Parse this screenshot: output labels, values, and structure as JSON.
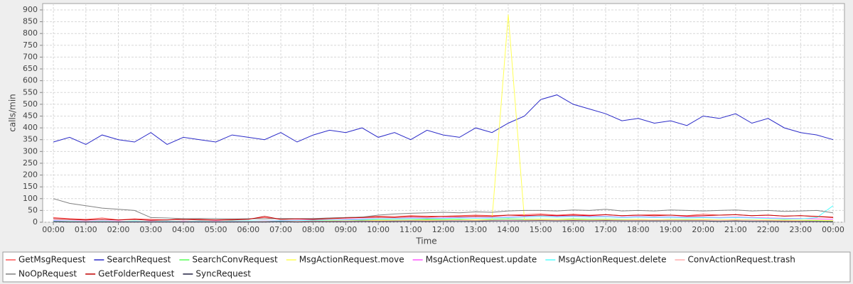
{
  "chart_data": {
    "type": "line",
    "x_label": "Time",
    "y_label": "calls/min",
    "x": [
      0,
      0.5,
      1,
      1.5,
      2,
      2.5,
      3,
      3.5,
      4,
      4.5,
      5,
      5.5,
      6,
      6.5,
      7,
      7.5,
      8,
      8.5,
      9,
      9.5,
      10,
      10.5,
      11,
      11.5,
      12,
      12.5,
      13,
      13.5,
      14,
      14.5,
      15,
      15.5,
      16,
      16.5,
      17,
      17.5,
      18,
      18.5,
      19,
      19.5,
      20,
      20.5,
      21,
      21.5,
      22,
      22.5,
      23,
      23.5,
      24
    ],
    "xlim": [
      -0.33,
      24.35
    ],
    "xticks": [
      {
        "value": 0,
        "label": "00:00"
      },
      {
        "value": 1,
        "label": "01:00"
      },
      {
        "value": 2,
        "label": "02:00"
      },
      {
        "value": 3,
        "label": "03:00"
      },
      {
        "value": 4,
        "label": "04:00"
      },
      {
        "value": 5,
        "label": "05:00"
      },
      {
        "value": 6,
        "label": "06:00"
      },
      {
        "value": 7,
        "label": "07:00"
      },
      {
        "value": 8,
        "label": "08:00"
      },
      {
        "value": 9,
        "label": "09:00"
      },
      {
        "value": 10,
        "label": "10:00"
      },
      {
        "value": 11,
        "label": "11:00"
      },
      {
        "value": 12,
        "label": "12:00"
      },
      {
        "value": 13,
        "label": "13:00"
      },
      {
        "value": 14,
        "label": "14:00"
      },
      {
        "value": 15,
        "label": "15:00"
      },
      {
        "value": 16,
        "label": "16:00"
      },
      {
        "value": 17,
        "label": "17:00"
      },
      {
        "value": 18,
        "label": "18:00"
      },
      {
        "value": 19,
        "label": "19:00"
      },
      {
        "value": 20,
        "label": "20:00"
      },
      {
        "value": 21,
        "label": "21:00"
      },
      {
        "value": 22,
        "label": "22:00"
      },
      {
        "value": 23,
        "label": "23:00"
      },
      {
        "value": 24,
        "label": "00:00"
      }
    ],
    "ylim": [
      0,
      927
    ],
    "yticks": [
      0,
      50,
      100,
      150,
      200,
      250,
      300,
      350,
      400,
      450,
      500,
      550,
      600,
      650,
      700,
      750,
      800,
      850,
      900
    ],
    "grid": true,
    "series": [
      {
        "name": "GetMsgRequest",
        "color": "#ff5555",
        "values": [
          20,
          15,
          12,
          18,
          10,
          14,
          12,
          10,
          15,
          12,
          10,
          12,
          14,
          20,
          12,
          15,
          14,
          18,
          20,
          22,
          25,
          24,
          28,
          26,
          25,
          28,
          30,
          28,
          30,
          32,
          35,
          30,
          34,
          30,
          32,
          28,
          30,
          32,
          30,
          28,
          34,
          30,
          32,
          28,
          30,
          26,
          28,
          25,
          22
        ]
      },
      {
        "name": "SearchRequest",
        "color": "#2a2ac8",
        "values": [
          340,
          360,
          330,
          370,
          350,
          340,
          380,
          330,
          360,
          350,
          340,
          370,
          360,
          350,
          380,
          340,
          370,
          390,
          380,
          400,
          360,
          380,
          350,
          390,
          370,
          360,
          400,
          380,
          420,
          450,
          520,
          540,
          500,
          480,
          460,
          430,
          440,
          420,
          430,
          410,
          450,
          440,
          460,
          420,
          440,
          400,
          380,
          370,
          350
        ]
      },
      {
        "name": "SearchConvRequest",
        "color": "#55ff55",
        "values": [
          5,
          4,
          5,
          3,
          4,
          5,
          3,
          4,
          5,
          4,
          3,
          5,
          4,
          5,
          6,
          5,
          6,
          7,
          6,
          8,
          10,
          9,
          10,
          12,
          11,
          12,
          10,
          12,
          14,
          12,
          13,
          12,
          14,
          12,
          13,
          11,
          12,
          10,
          12,
          11,
          12,
          10,
          11,
          10,
          9,
          10,
          8,
          7,
          6
        ]
      },
      {
        "name": "MsgActionRequest.move",
        "color": "#ffff55",
        "values": [
          5,
          4,
          3,
          4,
          3,
          4,
          3,
          4,
          3,
          4,
          3,
          4,
          5,
          4,
          5,
          6,
          5,
          6,
          7,
          6,
          8,
          7,
          8,
          9,
          8,
          9,
          10,
          9,
          880,
          10,
          12,
          11,
          12,
          10,
          11,
          10,
          12,
          10,
          11,
          10,
          12,
          10,
          11,
          9,
          10,
          8,
          9,
          8,
          7
        ]
      },
      {
        "name": "MsgActionRequest.update",
        "color": "#ff55ff",
        "values": [
          8,
          6,
          5,
          6,
          5,
          4,
          5,
          4,
          5,
          4,
          5,
          4,
          5,
          6,
          7,
          8,
          9,
          10,
          12,
          14,
          15,
          16,
          18,
          17,
          18,
          20,
          19,
          20,
          22,
          24,
          25,
          24,
          26,
          24,
          25,
          22,
          24,
          22,
          23,
          21,
          22,
          20,
          22,
          20,
          18,
          17,
          16,
          14,
          12
        ]
      },
      {
        "name": "MsgActionRequest.delete",
        "color": "#55ffff",
        "values": [
          6,
          5,
          4,
          5,
          4,
          5,
          4,
          5,
          4,
          5,
          4,
          5,
          6,
          5,
          6,
          7,
          8,
          9,
          10,
          12,
          14,
          15,
          16,
          15,
          16,
          18,
          17,
          18,
          20,
          22,
          24,
          22,
          24,
          22,
          23,
          20,
          22,
          20,
          21,
          19,
          20,
          18,
          20,
          18,
          16,
          15,
          14,
          20,
          70
        ]
      },
      {
        "name": "ConvActionRequest.trash",
        "color": "#ffafaf",
        "values": [
          3,
          2,
          3,
          2,
          3,
          2,
          3,
          2,
          3,
          2,
          3,
          2,
          3,
          4,
          3,
          4,
          5,
          4,
          5,
          6,
          5,
          6,
          7,
          6,
          7,
          8,
          7,
          8,
          9,
          8,
          9,
          8,
          9,
          8,
          9,
          8,
          9,
          8,
          9,
          8,
          9,
          8,
          9,
          8,
          7,
          6,
          5,
          4,
          3
        ]
      },
      {
        "name": "NoOpRequest",
        "color": "#808080",
        "values": [
          100,
          80,
          70,
          60,
          55,
          50,
          20,
          18,
          15,
          16,
          15,
          14,
          15,
          14,
          16,
          15,
          16,
          18,
          20,
          22,
          30,
          35,
          38,
          40,
          42,
          40,
          44,
          42,
          48,
          50,
          50,
          48,
          52,
          50,
          55,
          48,
          50,
          48,
          52,
          50,
          48,
          50,
          52,
          48,
          50,
          46,
          48,
          50,
          40
        ]
      },
      {
        "name": "GetFolderRequest",
        "color": "#c00000",
        "values": [
          15,
          12,
          10,
          12,
          10,
          12,
          8,
          10,
          12,
          10,
          9,
          10,
          12,
          25,
          12,
          14,
          12,
          15,
          18,
          20,
          22,
          20,
          24,
          22,
          25,
          24,
          26,
          25,
          30,
          28,
          30,
          28,
          30,
          28,
          32,
          28,
          30,
          28,
          30,
          26,
          28,
          30,
          32,
          28,
          30,
          26,
          28,
          24,
          20
        ]
      },
      {
        "name": "SyncRequest",
        "color": "#202040",
        "values": [
          2,
          1,
          1,
          1,
          1,
          1,
          1,
          1,
          1,
          1,
          1,
          1,
          1,
          1,
          2,
          1,
          2,
          2,
          2,
          3,
          3,
          3,
          4,
          3,
          4,
          4,
          4,
          5,
          5,
          5,
          6,
          5,
          6,
          5,
          6,
          5,
          5,
          5,
          5,
          5,
          5,
          4,
          5,
          4,
          4,
          3,
          3,
          3,
          2
        ]
      }
    ]
  }
}
